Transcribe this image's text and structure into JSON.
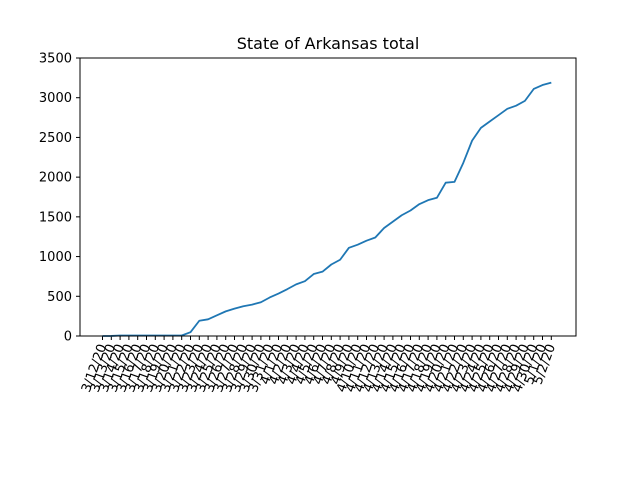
{
  "chart_data": {
    "type": "line",
    "title": "State of Arkansas total",
    "xlabel": "",
    "ylabel": "",
    "ylim": [
      0,
      3500
    ],
    "yticks": [
      0,
      500,
      1000,
      1500,
      2000,
      2500,
      3000,
      3500
    ],
    "grid": false,
    "line_color": "#1f77b4",
    "x": [
      "3/12/20",
      "3/13/20",
      "3/14/20",
      "3/15/20",
      "3/16/20",
      "3/17/20",
      "3/18/20",
      "3/19/20",
      "3/20/20",
      "3/21/20",
      "3/22/20",
      "3/23/20",
      "3/24/20",
      "3/25/20",
      "3/26/20",
      "3/27/20",
      "3/28/20",
      "3/29/20",
      "3/30/20",
      "3/31/20",
      "4/1/20",
      "4/2/20",
      "4/3/20",
      "4/4/20",
      "4/5/20",
      "4/6/20",
      "4/7/20",
      "4/8/20",
      "4/9/20",
      "4/10/20",
      "4/11/20",
      "4/12/20",
      "4/13/20",
      "4/14/20",
      "4/15/20",
      "4/16/20",
      "4/17/20",
      "4/18/20",
      "4/19/20",
      "4/20/20",
      "4/21/20",
      "4/22/20",
      "4/23/20",
      "4/24/20",
      "4/25/20",
      "4/26/20",
      "4/27/20",
      "4/28/20",
      "4/29/20",
      "4/30/20",
      "5/1/20",
      "5/2/20"
    ],
    "values": [
      0,
      1,
      6,
      6,
      6,
      6,
      6,
      6,
      6,
      6,
      48,
      192,
      210,
      260,
      310,
      345,
      375,
      395,
      425,
      485,
      535,
      590,
      650,
      690,
      780,
      810,
      900,
      960,
      1110,
      1150,
      1200,
      1240,
      1360,
      1440,
      1520,
      1580,
      1660,
      1710,
      1740,
      1930,
      1940,
      2180,
      2460,
      2620,
      2700,
      2780,
      2860,
      2900,
      2960,
      3110,
      3160,
      3190
    ]
  }
}
